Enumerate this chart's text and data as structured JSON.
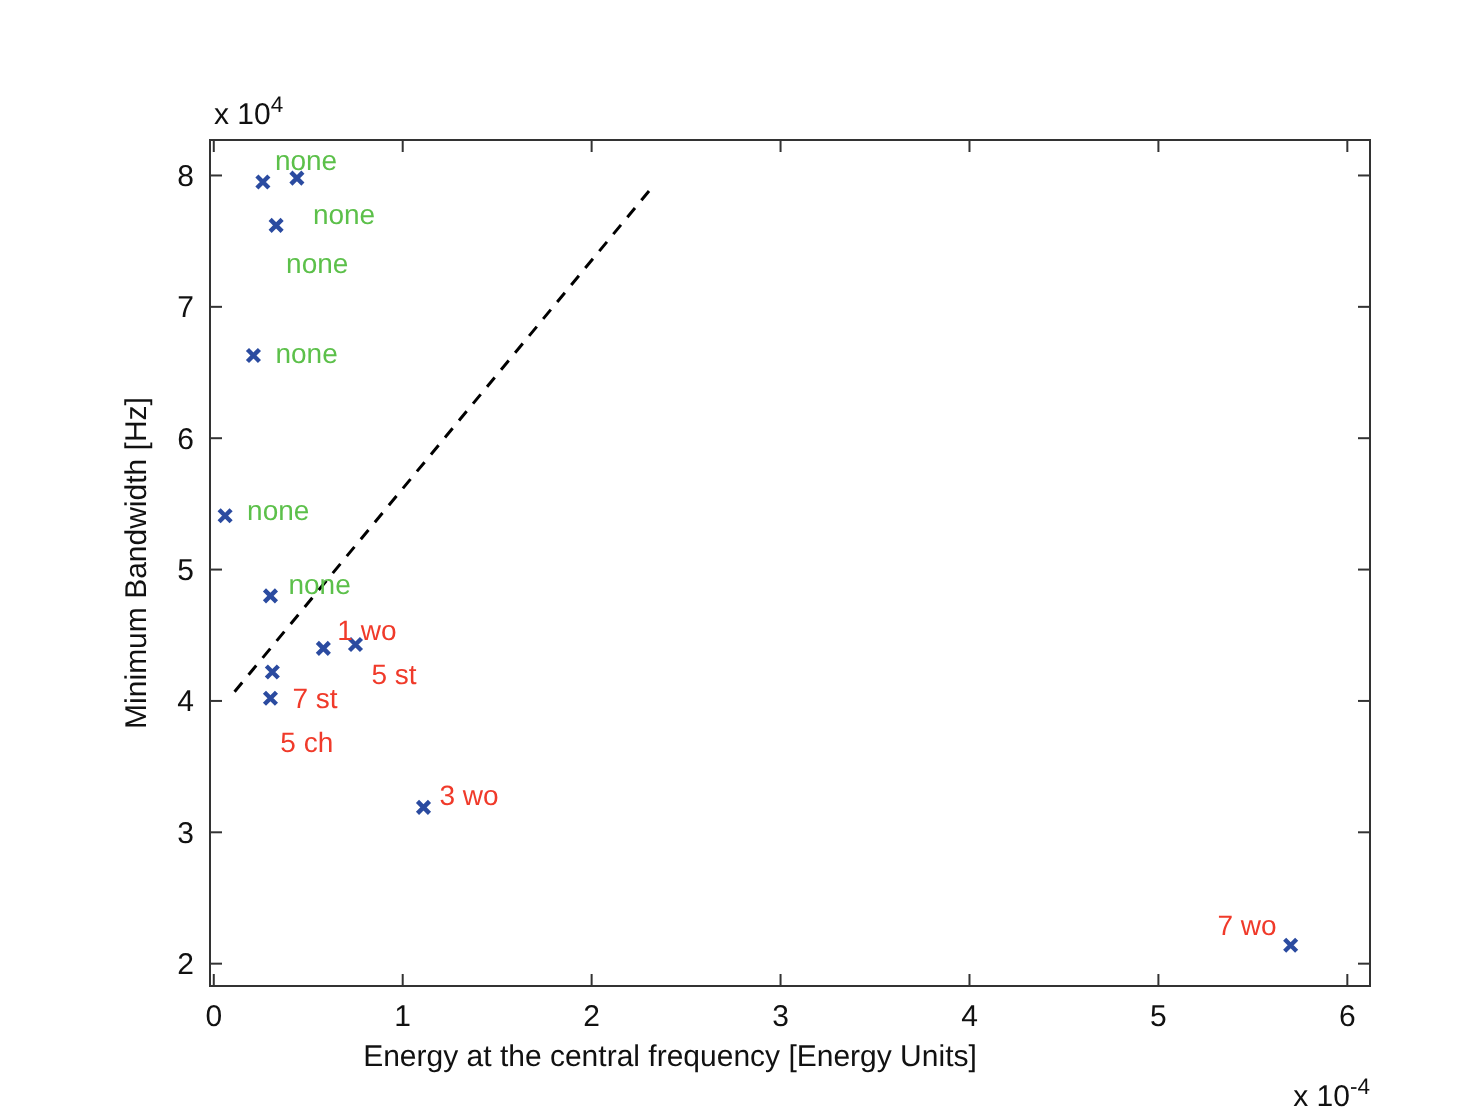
{
  "chart_data": {
    "type": "scatter",
    "xlabel": "Energy at the central frequency [Energy Units]",
    "ylabel": "Minimum Bandwidth [Hz]",
    "xlim": [
      -0.02,
      6.12
    ],
    "ylim": [
      1.83,
      8.27
    ],
    "xticks": [
      0,
      1,
      2,
      3,
      4,
      5,
      6
    ],
    "yticks": [
      2,
      3,
      4,
      5,
      6,
      7,
      8
    ],
    "grid": false,
    "marker": "cross",
    "series": [
      {
        "color": "#2b4ba0",
        "x": [
          0.26,
          0.44,
          0.33,
          0.21,
          0.06,
          0.3,
          0.58,
          0.75,
          0.3,
          0.31,
          1.11,
          5.7
        ],
        "values": [
          7.95,
          7.98,
          7.62,
          6.63,
          5.41,
          4.8,
          4.4,
          4.43,
          4.02,
          4.22,
          3.19,
          2.14
        ]
      },
      {
        "type": "line",
        "color": "#000000",
        "marker": "none",
        "line_style": "dashed",
        "x": [
          0.11,
          2.32
        ],
        "values": [
          4.07,
          7.91
        ]
      }
    ],
    "annotations": [
      "x 10$^{4}$",
      "x 10$^{-4}$",
      {
        "text": "none",
        "x": 0.26,
        "y": 7.95
      },
      {
        "text": "none",
        "x": 0.44,
        "y": 7.98
      },
      {
        "text": "none",
        "x": 0.33,
        "y": 7.62
      },
      {
        "text": "none",
        "x": 0.21,
        "y": 6.63
      },
      {
        "text": "none",
        "x": 0.06,
        "y": 5.41
      },
      {
        "text": "none",
        "x": 0.3,
        "y": 4.8
      },
      {
        "text": "1 wo",
        "x": 0.58,
        "y": 4.4
      },
      {
        "text": "5 st",
        "x": 0.75,
        "y": 4.43
      },
      {
        "text": "7 st",
        "x": 0.3,
        "y": 4.02
      },
      {
        "text": "5 ch",
        "x": 0.31,
        "y": 4.22
      },
      {
        "text": "3 wo",
        "x": 1.11,
        "y": 3.19
      },
      {
        "text": "7 wo",
        "x": 5.7,
        "y": 2.14
      }
    ]
  }
}
